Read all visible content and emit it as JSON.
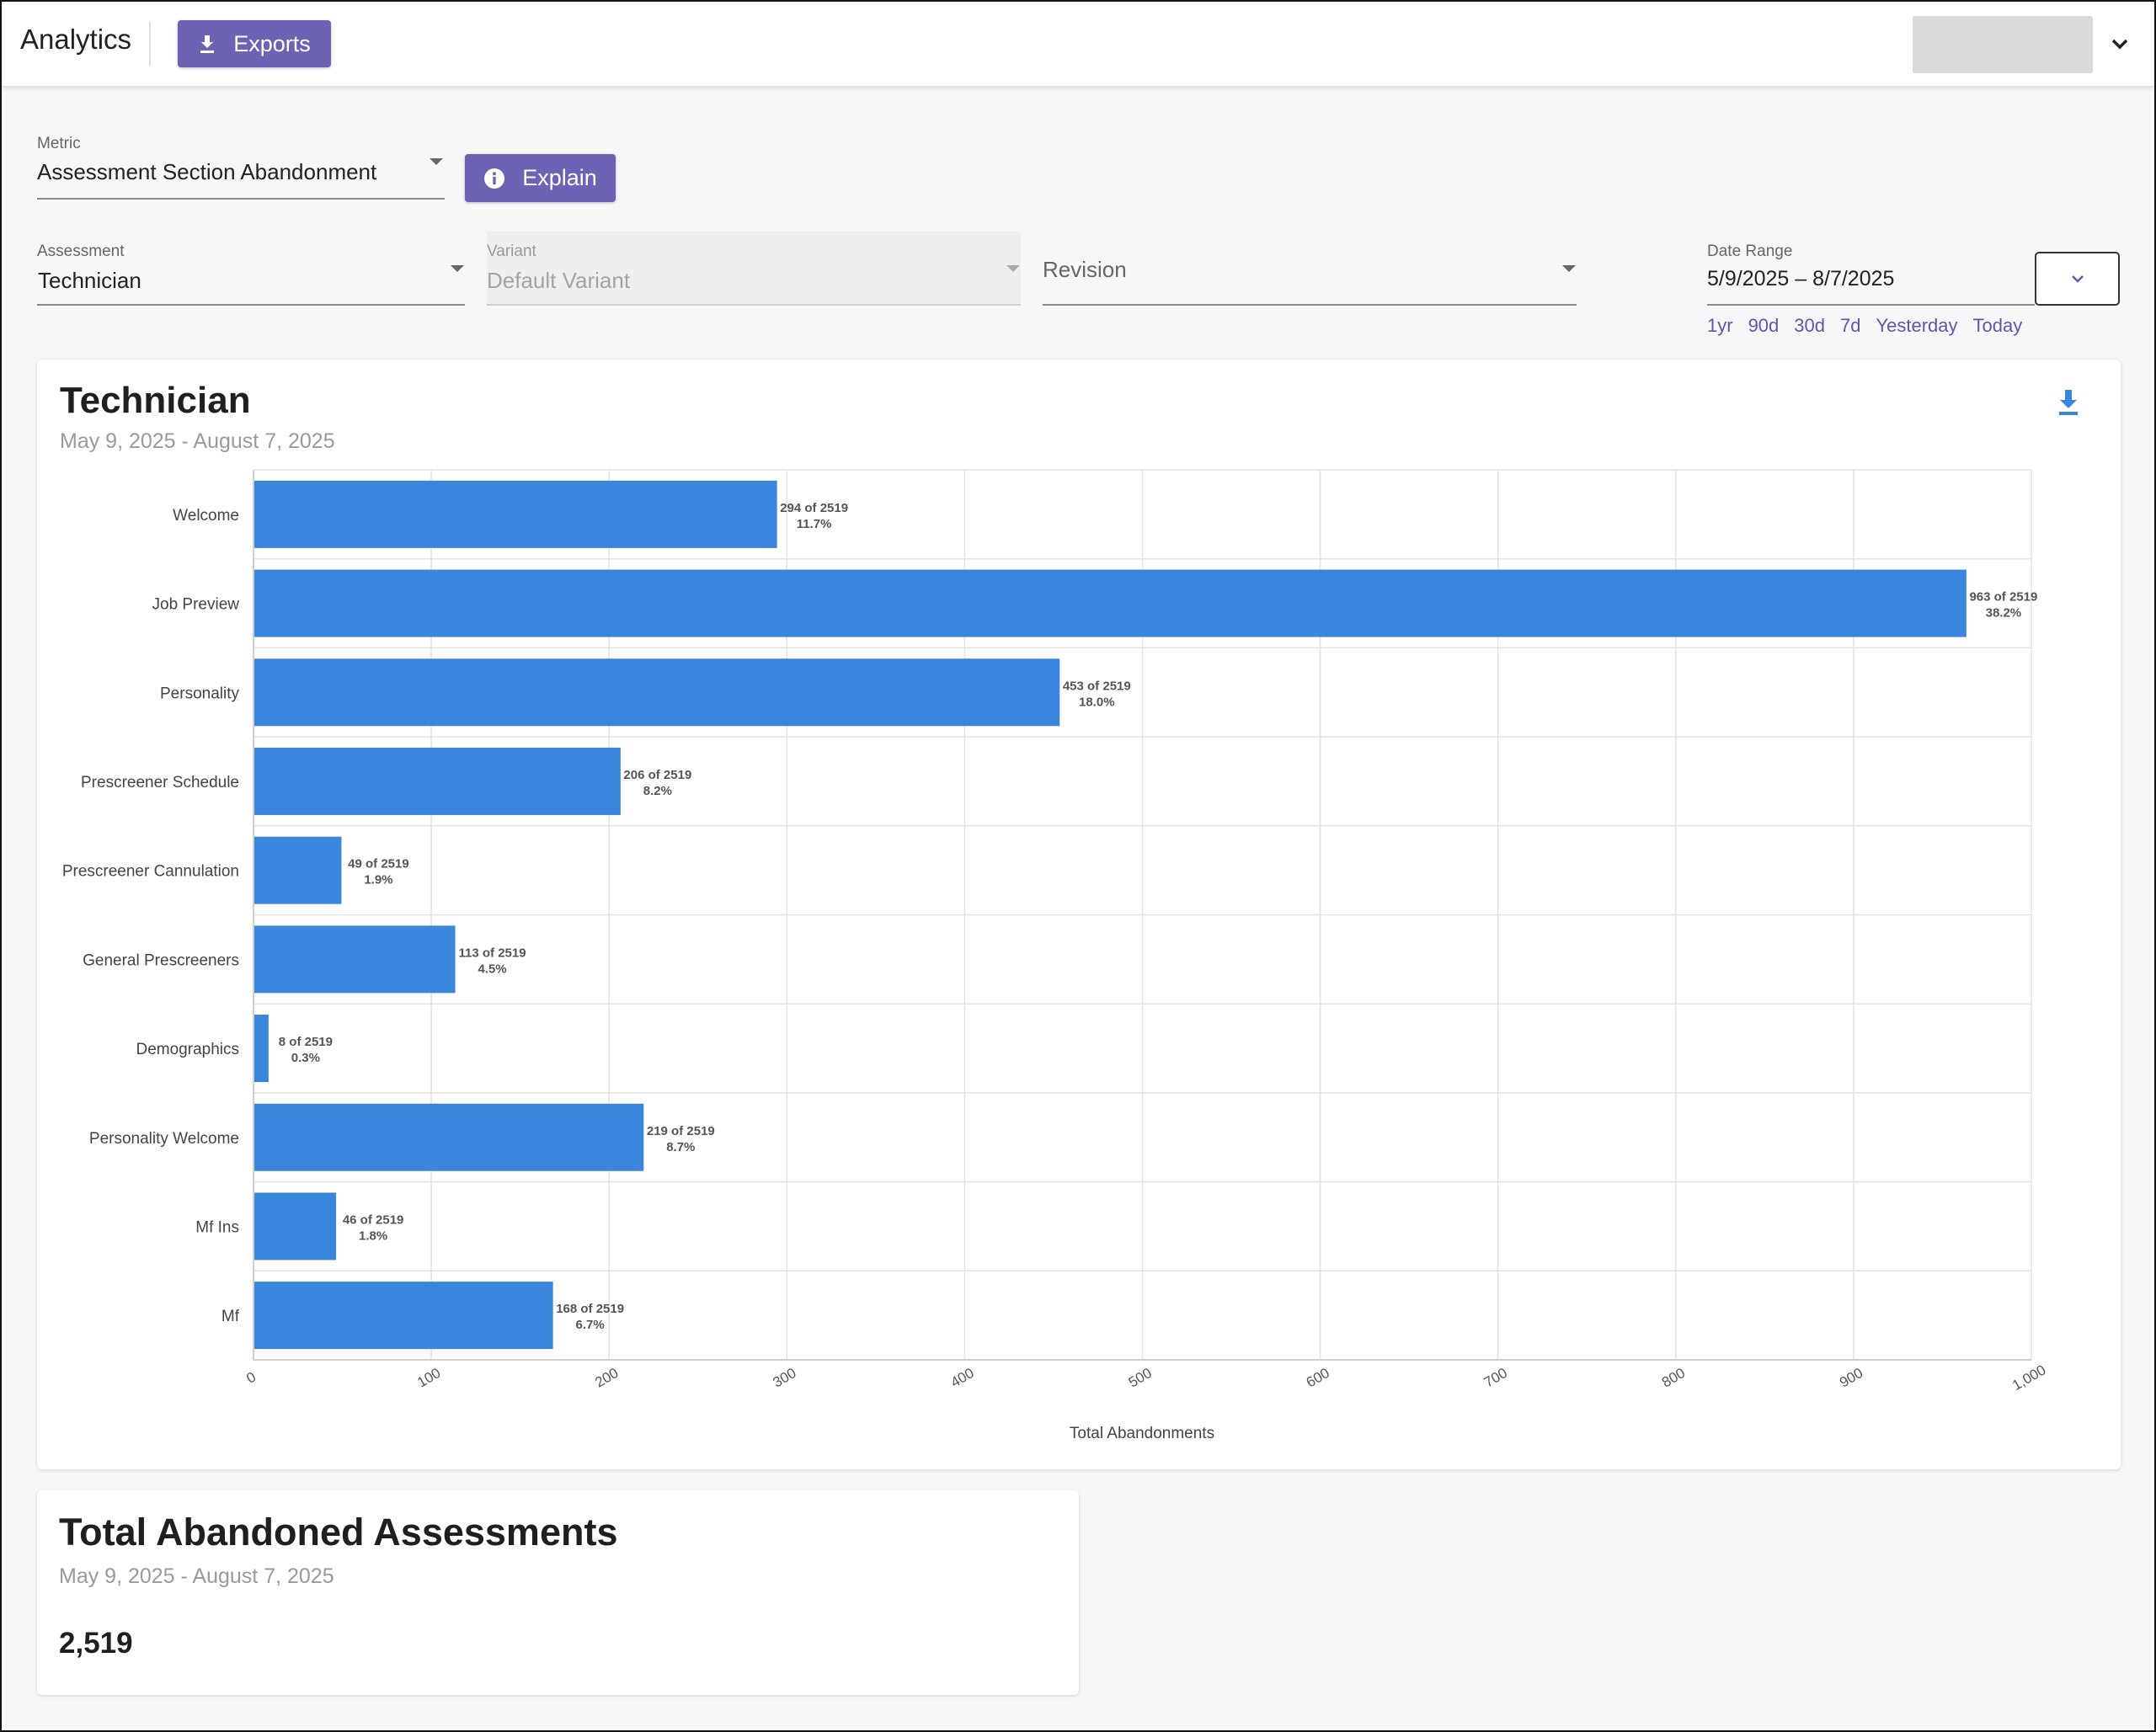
{
  "header": {
    "app_title": "Analytics",
    "exports_label": "Exports",
    "exports_icon": "download-icon",
    "user_chevron_icon": "chevron-down-icon"
  },
  "filters": {
    "metric": {
      "label": "Metric",
      "value": "Assessment Section Abandonment"
    },
    "explain_label": "Explain",
    "explain_icon": "info-icon",
    "assessment": {
      "label": "Assessment",
      "value": "Technician"
    },
    "variant": {
      "label": "Variant",
      "value": "Default Variant",
      "disabled": true
    },
    "revision": {
      "placeholder": "Revision"
    },
    "date_range": {
      "label": "Date Range",
      "value": "5/9/2025 – 8/7/2025",
      "quick_ranges": [
        "1yr",
        "90d",
        "30d",
        "7d",
        "Yesterday",
        "Today"
      ]
    }
  },
  "chart_card": {
    "title": "Technician",
    "subtitle": "May 9, 2025 - August 7, 2025",
    "download_icon": "download-icon"
  },
  "chart_data": {
    "type": "bar",
    "orientation": "horizontal",
    "categories": [
      "Welcome",
      "Job Preview",
      "Personality",
      "Prescreener Schedule",
      "Prescreener Cannulation",
      "General Prescreeners",
      "Demographics",
      "Personality Welcome",
      "Mf Ins",
      "Mf"
    ],
    "values": [
      294,
      963,
      453,
      206,
      49,
      113,
      8,
      219,
      46,
      168
    ],
    "value_labels": [
      "294 of 2519",
      "963 of 2519",
      "453 of 2519",
      "206 of 2519",
      "49 of 2519",
      "113 of 2519",
      "8 of 2519",
      "219 of 2519",
      "46 of 2519",
      "168 of 2519"
    ],
    "percent_labels": [
      "11.7%",
      "38.2%",
      "18.0%",
      "8.2%",
      "1.9%",
      "4.5%",
      "0.3%",
      "8.7%",
      "1.8%",
      "6.7%"
    ],
    "xlabel": "Total Abandonments",
    "xlim": [
      0,
      1000
    ],
    "xticks": [
      "0",
      "100",
      "200",
      "300",
      "400",
      "500",
      "600",
      "700",
      "800",
      "900",
      "1,000"
    ],
    "grid": true,
    "bar_color": "#3b86dd"
  },
  "total_card": {
    "title": "Total Abandoned Assessments",
    "subtitle": "May 9, 2025 - August 7, 2025",
    "value": "2,519"
  }
}
